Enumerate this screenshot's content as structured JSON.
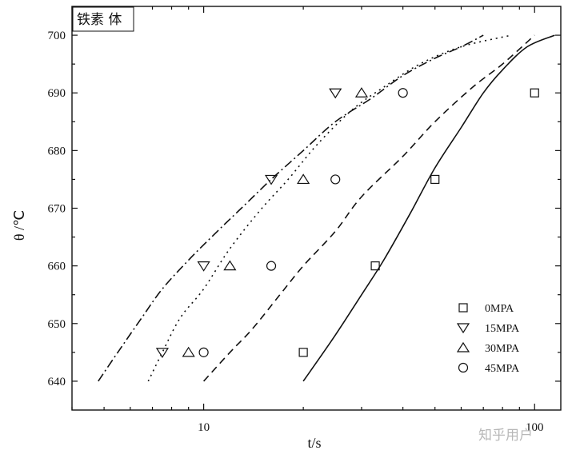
{
  "chart_data": {
    "type": "scatter",
    "title": "",
    "annotation": "铁素 体",
    "xlabel": "t/s",
    "ylabel": "θ /℃",
    "xscale": "log",
    "xlim": [
      4.0,
      120
    ],
    "ylim": [
      635,
      705
    ],
    "x_ticks": [
      10,
      100
    ],
    "x_tick_labels": [
      "10",
      "100"
    ],
    "y_ticks": [
      640,
      650,
      660,
      670,
      680,
      690,
      700
    ],
    "y_tick_labels": [
      "640",
      "650",
      "660",
      "670",
      "680",
      "690",
      "700"
    ],
    "grid": false,
    "legend_position": "bottom-right",
    "series": [
      {
        "name": "0MPA",
        "marker": "square",
        "x": [
          20,
          33,
          50,
          100
        ],
        "y": [
          645,
          660,
          675,
          690
        ]
      },
      {
        "name": "15MPA",
        "marker": "triangle-down",
        "x": [
          7.5,
          10,
          16,
          25
        ],
        "y": [
          645,
          660,
          675,
          690
        ]
      },
      {
        "name": "30MPA",
        "marker": "triangle-up",
        "x": [
          9,
          12,
          20,
          30
        ],
        "y": [
          645,
          660,
          675,
          690
        ]
      },
      {
        "name": "45MPA",
        "marker": "circle",
        "x": [
          10,
          16,
          25,
          40
        ],
        "y": [
          645,
          660,
          675,
          690
        ]
      }
    ],
    "curves": [
      {
        "style": "solid",
        "x": [
          20,
          25,
          30,
          35,
          42,
          50,
          60,
          70,
          80,
          95,
          115
        ],
        "y": [
          640,
          648,
          655,
          661,
          669,
          677,
          684,
          690,
          694,
          698,
          700
        ]
      },
      {
        "style": "dashed",
        "x": [
          10,
          12,
          14,
          17,
          20,
          25,
          30,
          40,
          50,
          65,
          80,
          100
        ],
        "y": [
          640,
          645,
          649,
          655,
          660,
          666,
          672,
          679,
          685,
          691,
          695,
          700
        ]
      },
      {
        "style": "dotted",
        "x": [
          6.8,
          7.5,
          8.5,
          10,
          12,
          15,
          18,
          22,
          28,
          35,
          45,
          60,
          85
        ],
        "y": [
          640,
          645,
          651,
          656,
          663,
          670,
          675,
          681,
          687,
          691,
          695,
          698,
          700
        ]
      },
      {
        "style": "dashdot",
        "x": [
          4.8,
          5.5,
          6.5,
          7.5,
          9,
          11,
          13,
          16,
          20,
          25,
          32,
          40,
          50,
          60,
          70
        ],
        "y": [
          640,
          645,
          651,
          656,
          661,
          666,
          670,
          675,
          680,
          685,
          689,
          693,
          696,
          698,
          700
        ]
      }
    ]
  },
  "colors": {
    "ink": "#111111",
    "background": "#ffffff",
    "watermark": "#b8b8b8"
  },
  "watermark": "知乎用户"
}
